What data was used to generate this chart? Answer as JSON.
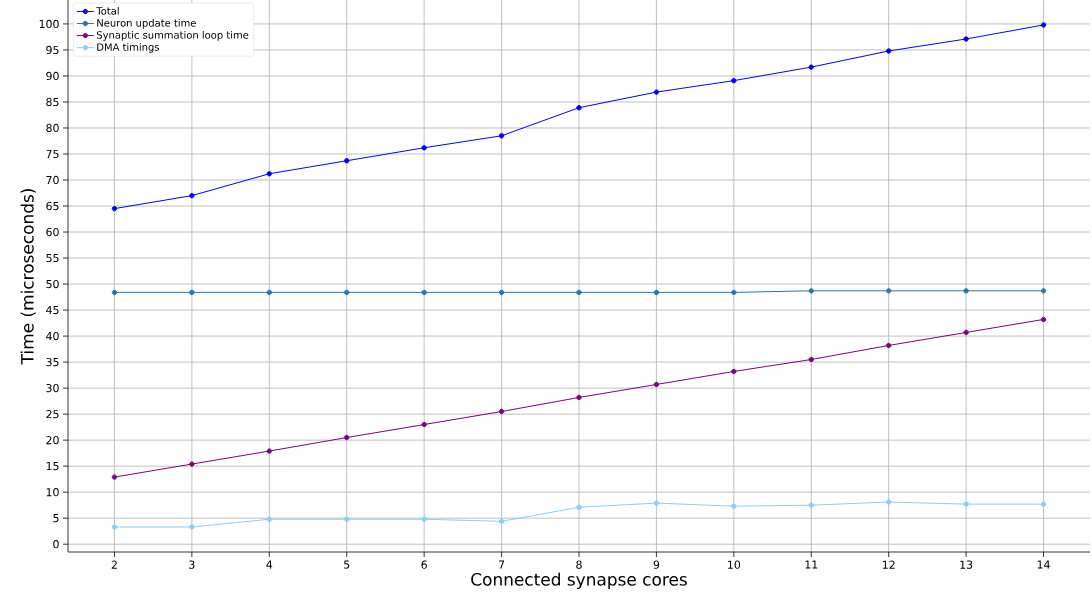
{
  "chart_data": {
    "type": "line",
    "xlabel": "Connected synapse cores",
    "ylabel": "Time (microseconds)",
    "x": [
      2,
      3,
      4,
      5,
      6,
      7,
      8,
      9,
      10,
      11,
      12,
      13,
      14
    ],
    "series": [
      {
        "name": "Total",
        "color": "#0000ff",
        "values": [
          64.5,
          67.0,
          71.2,
          73.7,
          76.2,
          78.5,
          83.9,
          86.9,
          89.1,
          91.7,
          94.8,
          97.1,
          99.8
        ]
      },
      {
        "name": "Neuron update time",
        "color": "#1f77b4",
        "values": [
          48.4,
          48.4,
          48.4,
          48.4,
          48.4,
          48.4,
          48.4,
          48.4,
          48.4,
          48.7,
          48.7,
          48.7,
          48.7
        ]
      },
      {
        "name": "Synaptic summation loop time",
        "color": "#800080",
        "values": [
          12.9,
          15.4,
          17.9,
          20.5,
          23.0,
          25.5,
          28.2,
          30.7,
          33.2,
          35.5,
          38.2,
          40.7,
          43.2
        ]
      },
      {
        "name": "DMA timings",
        "color": "#87cefa",
        "values": [
          3.3,
          3.3,
          4.8,
          4.8,
          4.8,
          4.4,
          7.1,
          7.9,
          7.3,
          7.5,
          8.1,
          7.7,
          7.7
        ]
      }
    ],
    "xlim": [
      1.4,
      14.6
    ],
    "ylim": [
      -1.5,
      104.6
    ],
    "xticks": [
      2,
      3,
      4,
      5,
      6,
      7,
      8,
      9,
      10,
      11,
      12,
      13,
      14
    ],
    "yticks": [
      0,
      5,
      10,
      15,
      20,
      25,
      30,
      35,
      40,
      45,
      50,
      55,
      60,
      65,
      70,
      75,
      80,
      85,
      90,
      95,
      100
    ],
    "grid": true,
    "legend": "top left",
    "marker": "circle",
    "line_style": "solid"
  }
}
